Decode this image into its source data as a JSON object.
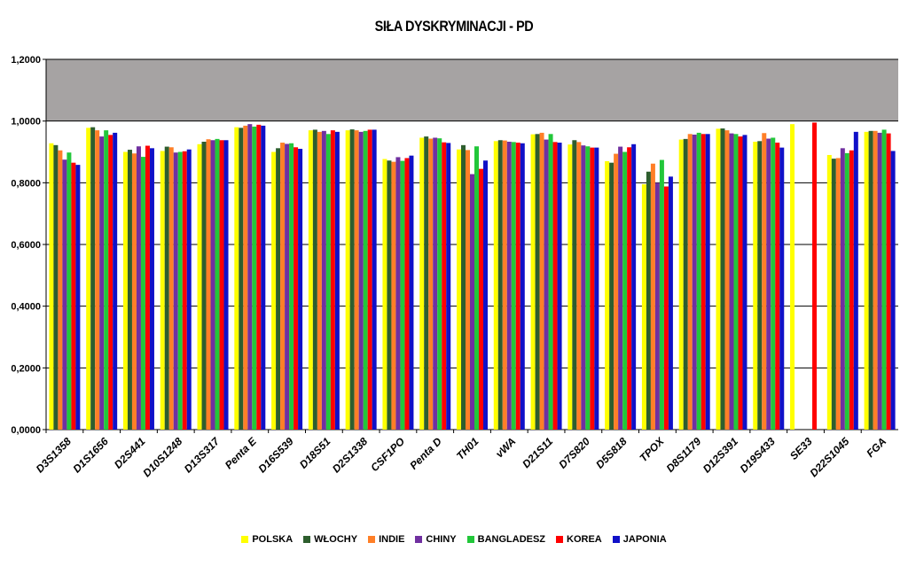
{
  "chart_data": {
    "type": "bar",
    "title": "SIŁA DYSKRYMINACJI - PD",
    "xlabel": "",
    "ylabel": "",
    "ylim": [
      0,
      1.2
    ],
    "yticks": [
      "0,0000",
      "0,2000",
      "0,4000",
      "0,6000",
      "0,8000",
      "1,0000",
      "1,2000"
    ],
    "grid": true,
    "legend_position": "bottom",
    "categories": [
      "D3S1358",
      "D1S1656",
      "D2S441",
      "D10S1248",
      "D13S317",
      "Penta E",
      "D16S539",
      "D18S51",
      "D2S1338",
      "CSF1PO",
      "Penta D",
      "TH01",
      "vWA",
      "D21S11",
      "D7S820",
      "D5S818",
      "TPOX",
      "D8S1179",
      "D12S391",
      "D19S433",
      "SE33",
      "D22S1045",
      "FGA"
    ],
    "series": [
      {
        "name": "POLSKA",
        "color": "#ffff00",
        "values": [
          0.928,
          0.978,
          0.9,
          0.903,
          0.925,
          0.98,
          0.9,
          0.97,
          0.97,
          0.877,
          0.946,
          0.908,
          0.935,
          0.957,
          0.924,
          0.87,
          0.795,
          0.94,
          0.975,
          0.933,
          0.99,
          0.89,
          0.965
        ]
      },
      {
        "name": "WŁOCHY",
        "color": "#2e5e2e",
        "values": [
          0.922,
          0.98,
          0.907,
          0.917,
          0.933,
          0.978,
          0.912,
          0.972,
          0.973,
          0.872,
          0.95,
          0.922,
          0.938,
          0.958,
          0.938,
          0.865,
          0.836,
          0.942,
          0.976,
          0.935,
          null,
          0.878,
          0.968
        ]
      },
      {
        "name": "INDIE",
        "color": "#ff7f27",
        "values": [
          0.905,
          0.97,
          0.895,
          0.915,
          0.941,
          0.985,
          0.93,
          0.965,
          0.97,
          0.868,
          0.943,
          0.906,
          0.937,
          0.962,
          0.932,
          0.894,
          0.862,
          0.958,
          0.97,
          0.961,
          null,
          0.88,
          0.968
        ]
      },
      {
        "name": "CHINY",
        "color": "#7030a0",
        "values": [
          0.875,
          0.95,
          0.918,
          0.898,
          0.938,
          0.99,
          0.926,
          0.968,
          0.965,
          0.883,
          0.946,
          0.828,
          0.933,
          0.94,
          0.921,
          0.917,
          0.8,
          0.956,
          0.96,
          0.943,
          null,
          0.912,
          0.962
        ]
      },
      {
        "name": "BANGLADESZ",
        "color": "#22c73a",
        "values": [
          0.898,
          0.97,
          0.884,
          0.9,
          0.942,
          0.982,
          0.928,
          0.958,
          0.968,
          0.871,
          0.944,
          0.918,
          0.932,
          0.958,
          0.918,
          0.9,
          0.874,
          0.962,
          0.958,
          0.946,
          null,
          0.896,
          0.972
        ]
      },
      {
        "name": "KOREA",
        "color": "#ff0000",
        "values": [
          0.865,
          0.955,
          0.92,
          0.902,
          0.938,
          0.988,
          0.915,
          0.97,
          0.972,
          0.88,
          0.931,
          0.845,
          0.93,
          0.932,
          0.914,
          0.915,
          0.788,
          0.958,
          0.95,
          0.93,
          0.995,
          0.905,
          0.96
        ]
      },
      {
        "name": "JAPONIA",
        "color": "#1010c8",
        "values": [
          0.858,
          0.962,
          0.912,
          0.908,
          0.938,
          0.985,
          0.91,
          0.965,
          0.972,
          0.888,
          0.929,
          0.872,
          0.928,
          0.93,
          0.914,
          0.925,
          0.82,
          0.958,
          0.955,
          0.914,
          null,
          0.965,
          0.903
        ]
      }
    ]
  }
}
